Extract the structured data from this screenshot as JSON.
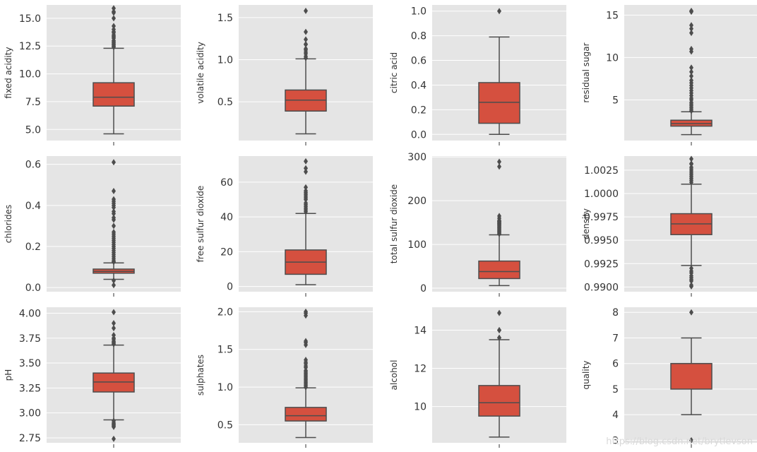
{
  "watermark": "https://blog.csdn.net/brytlevson",
  "colors": {
    "panel_bg": "#e5e5e5",
    "grid": "#ffffff",
    "box": "#d5503f",
    "line": "#4d4d4d",
    "text": "#333333"
  },
  "chart_data": [
    {
      "type": "box",
      "ylabel": "fixed acidity",
      "ylim": [
        4.0,
        16.2
      ],
      "yticks": [
        5.0,
        7.5,
        10.0,
        12.5,
        15.0
      ],
      "yticklabels": [
        "5.0",
        "7.5",
        "10.0",
        "12.5",
        "15.0"
      ],
      "stats": {
        "whislo": 4.6,
        "q1": 7.1,
        "med": 7.9,
        "q3": 9.2,
        "whishi": 12.3
      },
      "fliers": [
        12.4,
        12.5,
        12.6,
        12.7,
        12.8,
        12.9,
        13.0,
        13.2,
        13.3,
        13.4,
        13.5,
        13.7,
        13.8,
        14.0,
        14.3,
        15.0,
        15.5,
        15.6,
        15.9
      ]
    },
    {
      "type": "box",
      "ylabel": "volatile acidity",
      "ylim": [
        0.04,
        1.65
      ],
      "yticks": [
        0.5,
        1.0,
        1.5
      ],
      "yticklabels": [
        "0.5",
        "1.0",
        "1.5"
      ],
      "stats": {
        "whislo": 0.12,
        "q1": 0.39,
        "med": 0.52,
        "q3": 0.64,
        "whishi": 1.01
      },
      "fliers": [
        1.02,
        1.04,
        1.07,
        1.09,
        1.115,
        1.13,
        1.18,
        1.185,
        1.24,
        1.33,
        1.58
      ]
    },
    {
      "type": "box",
      "ylabel": "citric acid",
      "ylim": [
        -0.05,
        1.05
      ],
      "yticks": [
        0.0,
        0.2,
        0.4,
        0.6,
        0.8,
        1.0
      ],
      "yticklabels": [
        "0.0",
        "0.2",
        "0.4",
        "0.6",
        "0.8",
        "1.0"
      ],
      "stats": {
        "whislo": 0.0,
        "q1": 0.09,
        "med": 0.26,
        "q3": 0.42,
        "whishi": 0.79
      },
      "fliers": [
        1.0
      ]
    },
    {
      "type": "box",
      "ylabel": "residual sugar",
      "ylim": [
        0.2,
        16.2
      ],
      "yticks": [
        5,
        10,
        15
      ],
      "yticklabels": [
        "5",
        "10",
        "15"
      ],
      "stats": {
        "whislo": 0.9,
        "q1": 1.9,
        "med": 2.2,
        "q3": 2.6,
        "whishi": 3.6
      },
      "fliers": [
        3.7,
        3.9,
        4.1,
        4.3,
        4.5,
        4.7,
        5.0,
        5.2,
        5.5,
        5.8,
        6.1,
        6.4,
        6.7,
        7.0,
        7.3,
        7.8,
        8.3,
        8.8,
        10.7,
        11.0,
        12.9,
        13.4,
        13.8,
        15.4,
        15.5
      ]
    },
    {
      "type": "box",
      "ylabel": "chlorides",
      "ylim": [
        -0.02,
        0.64
      ],
      "yticks": [
        0.0,
        0.2,
        0.4,
        0.6
      ],
      "yticklabels": [
        "0.0",
        "0.2",
        "0.4",
        "0.6"
      ],
      "stats": {
        "whislo": 0.04,
        "q1": 0.07,
        "med": 0.079,
        "q3": 0.09,
        "whishi": 0.12
      },
      "fliers": [
        0.012,
        0.034,
        0.125,
        0.13,
        0.14,
        0.15,
        0.16,
        0.17,
        0.18,
        0.19,
        0.2,
        0.21,
        0.22,
        0.23,
        0.24,
        0.25,
        0.26,
        0.27,
        0.3,
        0.33,
        0.34,
        0.36,
        0.37,
        0.39,
        0.4,
        0.41,
        0.42,
        0.43,
        0.47,
        0.61
      ]
    },
    {
      "type": "box",
      "ylabel": "free sulfur dioxide",
      "ylim": [
        -3,
        75
      ],
      "yticks": [
        0,
        20,
        40,
        60
      ],
      "yticklabels": [
        "0",
        "20",
        "40",
        "60"
      ],
      "stats": {
        "whislo": 1,
        "q1": 7,
        "med": 14,
        "q3": 21,
        "whishi": 42
      },
      "fliers": [
        43,
        44,
        45,
        46,
        47,
        48,
        50,
        51,
        52,
        53,
        54,
        55,
        57,
        66,
        68,
        72
      ]
    },
    {
      "type": "box",
      "ylabel": "total sulfur dioxide",
      "ylim": [
        -8,
        302
      ],
      "yticks": [
        0,
        100,
        200,
        300
      ],
      "yticklabels": [
        "0",
        "100",
        "200",
        "300"
      ],
      "stats": {
        "whislo": 6,
        "q1": 22,
        "med": 38,
        "q3": 62,
        "whishi": 122
      },
      "fliers": [
        124,
        126,
        128,
        130,
        132,
        134,
        136,
        138,
        140,
        142,
        144,
        145,
        147,
        148,
        149,
        151,
        152,
        153,
        155,
        160,
        165,
        278,
        289
      ]
    },
    {
      "type": "box",
      "ylabel": "density",
      "ylim": [
        0.9895,
        1.004
      ],
      "yticks": [
        0.99,
        0.9925,
        0.995,
        0.9975,
        1.0,
        1.0025
      ],
      "yticklabels": [
        "0.9900",
        "0.9925",
        "0.9950",
        "0.9975",
        "1.0000",
        "1.0025"
      ],
      "stats": {
        "whislo": 0.9923,
        "q1": 0.9956,
        "med": 0.99675,
        "q3": 0.99784,
        "whishi": 1.001
      },
      "fliers": [
        0.99007,
        0.9902,
        0.99064,
        0.9908,
        0.991,
        0.9912,
        0.9915,
        0.9917,
        0.992,
        1.0012,
        1.0014,
        1.0016,
        1.0018,
        1.002,
        1.0022,
        1.0024,
        1.0026,
        1.0028,
        1.0032,
        1.00315,
        1.0037
      ]
    },
    {
      "type": "box",
      "ylabel": "pH",
      "ylim": [
        2.7,
        4.06
      ],
      "yticks": [
        2.75,
        3.0,
        3.25,
        3.5,
        3.75,
        4.0
      ],
      "yticklabels": [
        "2.75",
        "3.00",
        "3.25",
        "3.50",
        "3.75",
        "4.00"
      ],
      "stats": {
        "whislo": 2.93,
        "q1": 3.21,
        "med": 3.31,
        "q3": 3.4,
        "whishi": 3.68
      },
      "fliers": [
        2.74,
        2.86,
        2.87,
        2.88,
        2.89,
        2.9,
        2.92,
        3.69,
        3.7,
        3.71,
        3.72,
        3.74,
        3.75,
        3.78,
        3.85,
        3.9,
        4.01
      ]
    },
    {
      "type": "box",
      "ylabel": "sulphates",
      "ylim": [
        0.26,
        2.06
      ],
      "yticks": [
        0.5,
        1.0,
        1.5,
        2.0
      ],
      "yticklabels": [
        "0.5",
        "1.0",
        "1.5",
        "2.0"
      ],
      "stats": {
        "whislo": 0.33,
        "q1": 0.55,
        "med": 0.62,
        "q3": 0.73,
        "whishi": 0.99
      },
      "fliers": [
        1.0,
        1.02,
        1.04,
        1.06,
        1.08,
        1.1,
        1.12,
        1.14,
        1.16,
        1.18,
        1.2,
        1.22,
        1.26,
        1.28,
        1.31,
        1.33,
        1.36,
        1.56,
        1.59,
        1.61,
        1.95,
        1.98,
        2.0
      ]
    },
    {
      "type": "box",
      "ylabel": "alcohol",
      "ylim": [
        8.1,
        15.2
      ],
      "yticks": [
        10,
        12,
        14
      ],
      "yticklabels": [
        "10",
        "12",
        "14"
      ],
      "stats": {
        "whislo": 8.4,
        "q1": 9.5,
        "med": 10.2,
        "q3": 11.1,
        "whishi": 13.5
      },
      "fliers": [
        13.6,
        13.6,
        14.0,
        14.0,
        14.9
      ]
    },
    {
      "type": "box",
      "ylabel": "quality",
      "ylim": [
        2.9,
        8.2
      ],
      "yticks": [
        3,
        4,
        5,
        6,
        7,
        8
      ],
      "yticklabels": [
        "3",
        "4",
        "5",
        "6",
        "7",
        "8"
      ],
      "stats": {
        "whislo": 4,
        "q1": 5,
        "med": 6,
        "q3": 6,
        "whishi": 7
      },
      "fliers": [
        3,
        8
      ]
    }
  ]
}
